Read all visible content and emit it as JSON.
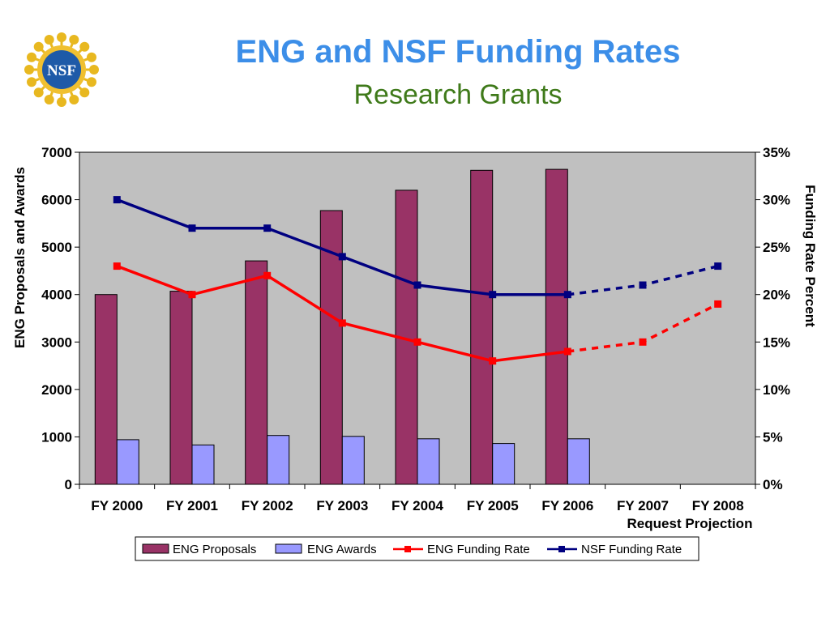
{
  "header": {
    "title": "ENG and NSF Funding Rates",
    "subtitle": "Research Grants",
    "logo_text": "NSF"
  },
  "colors": {
    "plot_bg": "#c0c0c0",
    "proposals": "#993366",
    "awards": "#9999ff",
    "eng_rate": "#ff0000",
    "nsf_rate": "#000080"
  },
  "chart_data": {
    "type": "bar",
    "title": "ENG and NSF Funding Rates",
    "subtitle": "Research Grants",
    "categories": [
      "FY 2000",
      "FY 2001",
      "FY 2002",
      "FY 2003",
      "FY 2004",
      "FY 2005",
      "FY 2006",
      "FY 2007",
      "FY 2008"
    ],
    "category_sublabel": "Request Projection",
    "ylabel": "ENG Proposals and Awards",
    "ylim": [
      0,
      7000
    ],
    "yticks": [
      0,
      1000,
      2000,
      3000,
      4000,
      5000,
      6000,
      7000
    ],
    "y2label": "Funding Rate Percent",
    "y2lim": [
      0,
      35
    ],
    "y2ticks": [
      "0%",
      "5%",
      "10%",
      "15%",
      "20%",
      "25%",
      "30%",
      "35%"
    ],
    "grid": false,
    "legend_position": "bottom",
    "series": [
      {
        "name": "ENG Proposals",
        "kind": "bar",
        "axis": "left",
        "values": [
          4000,
          4070,
          4710,
          5770,
          6200,
          6620,
          6640,
          null,
          null
        ]
      },
      {
        "name": "ENG Awards",
        "kind": "bar",
        "axis": "left",
        "values": [
          940,
          830,
          1030,
          1010,
          960,
          860,
          960,
          null,
          null
        ]
      },
      {
        "name": "ENG Funding Rate",
        "kind": "line",
        "axis": "right",
        "dashed_from": "FY 2006",
        "values": [
          23,
          20,
          22,
          17,
          15,
          13,
          14,
          15,
          19
        ]
      },
      {
        "name": "NSF Funding Rate",
        "kind": "line",
        "axis": "right",
        "dashed_from": "FY 2006",
        "values": [
          30,
          27,
          27,
          24,
          21,
          20,
          20,
          21,
          23
        ]
      }
    ]
  }
}
